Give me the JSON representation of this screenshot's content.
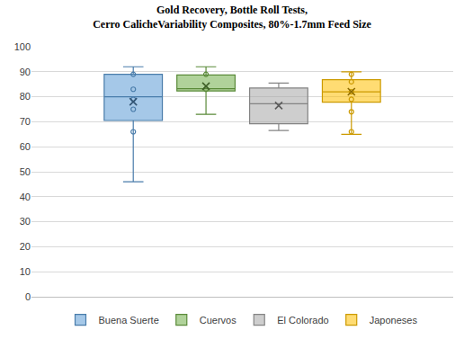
{
  "chart_data": {
    "type": "box",
    "title": "Gold Recovery, Bottle Roll Tests,\nCerro CalicheVariability Composites, 80%-1.7mm Feed Size",
    "ylim": [
      0,
      100
    ],
    "yticks": [
      0,
      10,
      20,
      30,
      40,
      50,
      60,
      70,
      80,
      90,
      100
    ],
    "grid": true,
    "legend": "bottom",
    "tick_labels": "y",
    "series": [
      {
        "name": "Buena Suerte",
        "color": "#5B9BD5",
        "min": 46,
        "q1": 70.5,
        "median": 80,
        "q3": 89,
        "max": 92,
        "mean": 78,
        "points": [
          89,
          83,
          79,
          75,
          66
        ]
      },
      {
        "name": "Cuervos",
        "color": "#70AD47",
        "min": 73,
        "q1": 82.3,
        "median": 83.2,
        "q3": 88.7,
        "max": 92,
        "mean": 84.2,
        "points": [
          89,
          83
        ]
      },
      {
        "name": "El Colorado",
        "color": "#A5A5A5",
        "min": 66.5,
        "q1": 69.2,
        "median": 77.2,
        "q3": 83.5,
        "max": 85.5,
        "mean": 76.5,
        "points": []
      },
      {
        "name": "Japoneses",
        "color": "#FFC000",
        "min": 65,
        "q1": 77.8,
        "median": 82,
        "q3": 86.8,
        "max": 90,
        "mean": 82,
        "points": [
          89,
          86,
          82,
          79,
          74,
          66
        ]
      }
    ]
  }
}
